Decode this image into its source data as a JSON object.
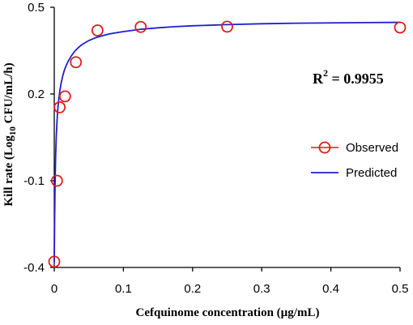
{
  "chart_data": {
    "type": "scatter",
    "xlabel": "Cefquinome concentration (µg/mL)",
    "ylabel_parts": [
      "Kill rate (Log",
      "10",
      " CFU/mL/h)"
    ],
    "xlim": [
      0,
      0.5
    ],
    "ylim": [
      -0.4,
      0.5
    ],
    "x_ticks": [
      0,
      0.1,
      0.2,
      0.3,
      0.4,
      0.5
    ],
    "x_tick_labels": [
      "0",
      "0.1",
      "0.2",
      "0.3",
      "0.4",
      "0.5"
    ],
    "y_ticks": [
      -0.4,
      -0.1,
      0.2,
      0.5
    ],
    "y_tick_labels": [
      "-0.4",
      "-0.1",
      "0.2",
      "0.5"
    ],
    "annotation": {
      "prefix": "R",
      "superscript": "2",
      "suffix": " = 0.9955"
    },
    "legend": {
      "placement": "right",
      "entries": [
        "Observed",
        "Predicted"
      ]
    },
    "series": [
      {
        "name": "Observed",
        "type": "scatter",
        "marker": "open-circle",
        "color": "#e31a1c",
        "x": [
          0,
          0.0039,
          0.0078,
          0.0156,
          0.0313,
          0.0625,
          0.125,
          0.25,
          0.5
        ],
        "y": [
          -0.38,
          -0.1,
          0.154,
          0.192,
          0.31,
          0.42,
          0.432,
          0.433,
          0.43
        ]
      },
      {
        "name": "Predicted",
        "type": "line",
        "color": "#1f1fcf",
        "x": [
          0,
          0.0005,
          0.001,
          0.0015,
          0.002,
          0.003,
          0.004,
          0.005,
          0.006,
          0.008,
          0.01,
          0.0125,
          0.015,
          0.0175,
          0.02,
          0.025,
          0.03,
          0.035,
          0.04,
          0.05,
          0.06,
          0.07,
          0.08,
          0.09,
          0.1,
          0.125,
          0.15,
          0.175,
          0.2,
          0.25,
          0.3,
          0.35,
          0.4,
          0.45,
          0.5
        ],
        "y": [
          -0.38,
          -0.246,
          -0.146,
          -0.07,
          -0.015,
          0.058,
          0.106,
          0.145,
          0.17,
          0.21,
          0.238,
          0.265,
          0.285,
          0.3,
          0.313,
          0.333,
          0.349,
          0.361,
          0.371,
          0.385,
          0.395,
          0.402,
          0.408,
          0.412,
          0.416,
          0.424,
          0.429,
          0.433,
          0.436,
          0.44,
          0.443,
          0.445,
          0.446,
          0.447,
          0.448
        ]
      }
    ],
    "grid": false,
    "colors": {
      "observed": "#e31a1c",
      "predicted": "#1f1fcf",
      "axis": "#000000"
    }
  }
}
